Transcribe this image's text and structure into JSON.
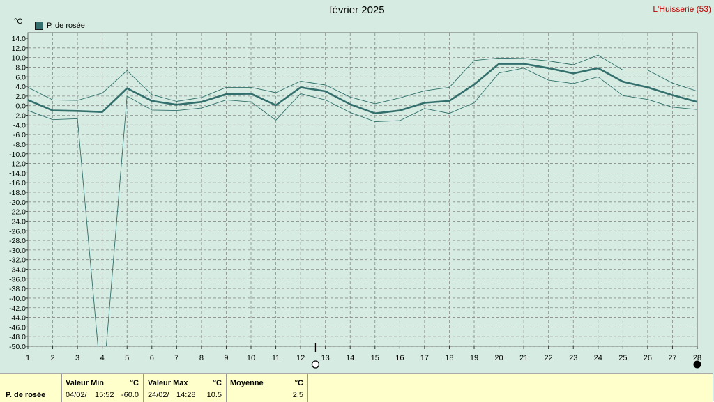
{
  "title": "février 2025",
  "station": "L'Huisserie (53)",
  "unit": "°C",
  "colors": {
    "background": "#d6ece2",
    "grid": "#8a8a8a",
    "mean_line": "#336f6c",
    "envelope": "#2f6e6a",
    "footer_bg": "#ffffcc"
  },
  "legend": {
    "label": "P. de rosée"
  },
  "chart_data": {
    "type": "line",
    "title": "février 2025",
    "ylabel": "°C",
    "ylim": [
      -50,
      15
    ],
    "y_ticks": [
      "14.0",
      "12.0",
      "10.0",
      "8.0",
      "6.0",
      "4.0",
      "2.0",
      "0.0",
      "-2.0",
      "-4.0",
      "-6.0",
      "-8.0",
      "-10.0",
      "-12.0",
      "-14.0",
      "-16.0",
      "-18.0",
      "-20.0",
      "-22.0",
      "-24.0",
      "-26.0",
      "-28.0",
      "-30.0",
      "-32.0",
      "-34.0",
      "-36.0",
      "-38.0",
      "-40.0",
      "-42.0",
      "-44.0",
      "-46.0",
      "-48.0",
      "-50.0"
    ],
    "x": [
      1,
      2,
      3,
      4,
      5,
      6,
      7,
      8,
      9,
      10,
      11,
      12,
      13,
      14,
      15,
      16,
      17,
      18,
      19,
      20,
      21,
      22,
      23,
      24,
      25,
      26,
      27,
      28
    ],
    "x_ticks": [
      "1",
      "2",
      "3",
      "4",
      "5",
      "6",
      "7",
      "8",
      "9",
      "10",
      "11",
      "12",
      "13",
      "14",
      "15",
      "16",
      "17",
      "18",
      "19",
      "20",
      "21",
      "22",
      "23",
      "24",
      "25",
      "26",
      "27",
      "28"
    ],
    "grid": true,
    "legend_position": "top-left",
    "series": [
      {
        "name": "P. de rosée",
        "role": "mean",
        "values": [
          1.2,
          -1.0,
          -1.1,
          -1.3,
          3.6,
          1.0,
          0.2,
          0.8,
          2.4,
          2.5,
          0.1,
          3.8,
          3.0,
          0.3,
          -1.6,
          -1.0,
          0.6,
          1.0,
          4.4,
          8.7,
          8.7,
          7.8,
          6.7,
          7.8,
          5.0,
          3.8,
          2.2,
          0.8
        ]
      },
      {
        "role": "max",
        "values": [
          3.8,
          1.2,
          1.1,
          2.6,
          7.3,
          2.3,
          0.9,
          1.7,
          3.8,
          3.8,
          2.7,
          5.1,
          4.3,
          1.8,
          0.4,
          1.6,
          3.1,
          3.8,
          9.4,
          9.9,
          9.8,
          9.3,
          8.5,
          10.5,
          7.4,
          7.4,
          4.7,
          3.0
        ]
      },
      {
        "role": "min",
        "values": [
          -1.0,
          -2.9,
          -2.7,
          -60.0,
          2.0,
          -0.9,
          -1.0,
          -0.5,
          1.2,
          0.8,
          -3.0,
          2.5,
          1.2,
          -1.4,
          -3.3,
          -3.1,
          -0.6,
          -1.6,
          0.6,
          6.8,
          7.8,
          5.3,
          4.6,
          6.0,
          2.1,
          1.3,
          -0.3,
          -0.8
        ]
      }
    ]
  },
  "footer": {
    "row_label": "P. de rosée",
    "min": {
      "header": "Valeur Min",
      "unit": "°C",
      "date": "04/02/",
      "time": "15:52",
      "value": "-60.0"
    },
    "max": {
      "header": "Valeur Max",
      "unit": "°C",
      "date": "24/02/",
      "time": "14:28",
      "value": "10.5"
    },
    "mean": {
      "header": "Moyenne",
      "unit": "°C",
      "value": "2.5"
    }
  }
}
